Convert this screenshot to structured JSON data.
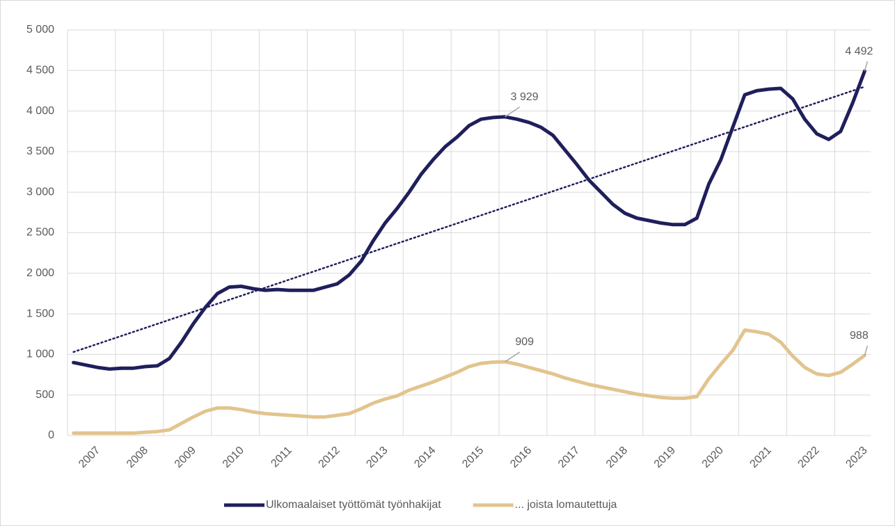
{
  "chart_data": {
    "type": "line",
    "categories": [
      null,
      "2007",
      null,
      null,
      null,
      "2008",
      null,
      null,
      null,
      "2009",
      null,
      null,
      null,
      "2010",
      null,
      null,
      null,
      "2011",
      null,
      null,
      null,
      "2012",
      null,
      null,
      null,
      "2013",
      null,
      null,
      null,
      "2014",
      null,
      null,
      null,
      "2015",
      null,
      null,
      null,
      "2016",
      null,
      null,
      null,
      "2017",
      null,
      null,
      null,
      "2018",
      null,
      null,
      null,
      "2019",
      null,
      null,
      null,
      "2020",
      null,
      null,
      null,
      "2021",
      null,
      null,
      null,
      "2022",
      null,
      null,
      null,
      "2023",
      null
    ],
    "series": [
      {
        "name": "Ulkomaalaiset työttömät työnhakijat",
        "color": "#1f1f5c",
        "values": [
          900,
          870,
          840,
          820,
          830,
          830,
          850,
          860,
          950,
          1150,
          1380,
          1580,
          1750,
          1830,
          1840,
          1810,
          1790,
          1800,
          1790,
          1790,
          1790,
          1830,
          1870,
          1980,
          2150,
          2400,
          2620,
          2800,
          3000,
          3220,
          3400,
          3560,
          3680,
          3820,
          3900,
          3920,
          3929,
          3900,
          3860,
          3800,
          3700,
          3520,
          3340,
          3150,
          3000,
          2850,
          2740,
          2680,
          2650,
          2620,
          2600,
          2600,
          2680,
          3100,
          3400,
          3800,
          4200,
          4250,
          4270,
          4280,
          4150,
          3900,
          3720,
          3650,
          3750,
          4100,
          4492
        ],
        "value_labels": [
          null,
          null,
          null,
          null,
          null,
          null,
          null,
          null,
          null,
          null,
          null,
          null,
          null,
          null,
          null,
          null,
          null,
          null,
          null,
          null,
          null,
          null,
          null,
          null,
          null,
          null,
          null,
          null,
          null,
          null,
          null,
          null,
          null,
          null,
          null,
          null,
          "3 929",
          null,
          null,
          null,
          null,
          null,
          null,
          null,
          null,
          null,
          null,
          null,
          null,
          null,
          null,
          null,
          null,
          null,
          null,
          null,
          null,
          null,
          null,
          null,
          null,
          null,
          null,
          null,
          null,
          null,
          "4 492"
        ]
      },
      {
        "name": "... joista lomautettuja",
        "color": "#e2c48e",
        "values": [
          30,
          30,
          30,
          30,
          30,
          30,
          40,
          50,
          70,
          150,
          230,
          300,
          340,
          340,
          320,
          290,
          270,
          260,
          250,
          240,
          230,
          230,
          250,
          270,
          330,
          400,
          450,
          490,
          560,
          610,
          660,
          720,
          780,
          850,
          890,
          905,
          909,
          880,
          840,
          800,
          760,
          710,
          670,
          630,
          600,
          570,
          540,
          510,
          490,
          470,
          460,
          460,
          480,
          700,
          880,
          1050,
          1300,
          1280,
          1250,
          1150,
          980,
          840,
          760,
          740,
          780,
          880,
          988
        ],
        "value_labels": [
          null,
          null,
          null,
          null,
          null,
          null,
          null,
          null,
          null,
          null,
          null,
          null,
          null,
          null,
          null,
          null,
          null,
          null,
          null,
          null,
          null,
          null,
          null,
          null,
          null,
          null,
          null,
          null,
          null,
          null,
          null,
          null,
          null,
          null,
          null,
          null,
          "909",
          null,
          null,
          null,
          null,
          null,
          null,
          null,
          null,
          null,
          null,
          null,
          null,
          null,
          null,
          null,
          null,
          null,
          null,
          null,
          null,
          null,
          null,
          null,
          null,
          null,
          null,
          null,
          null,
          null,
          "988"
        ]
      }
    ],
    "trendline": {
      "start": 1030,
      "end": 4300,
      "color": "#1f1f5c"
    },
    "ylim": [
      0,
      5000
    ],
    "yticks": [
      0,
      500,
      {
        "value": 1000,
        "label": "1 000"
      },
      {
        "value": 1500,
        "label": "1 500"
      },
      {
        "value": 2000,
        "label": "2 000"
      },
      {
        "value": 2500,
        "label": "2 500"
      },
      {
        "value": 3000,
        "label": "3 000"
      },
      {
        "value": 3500,
        "label": "3 500"
      },
      {
        "value": 4000,
        "label": "4 000"
      },
      {
        "value": 4500,
        "label": "4 500"
      },
      {
        "value": 5000,
        "label": "5 000"
      }
    ],
    "grid": true,
    "legend": "bottom"
  }
}
